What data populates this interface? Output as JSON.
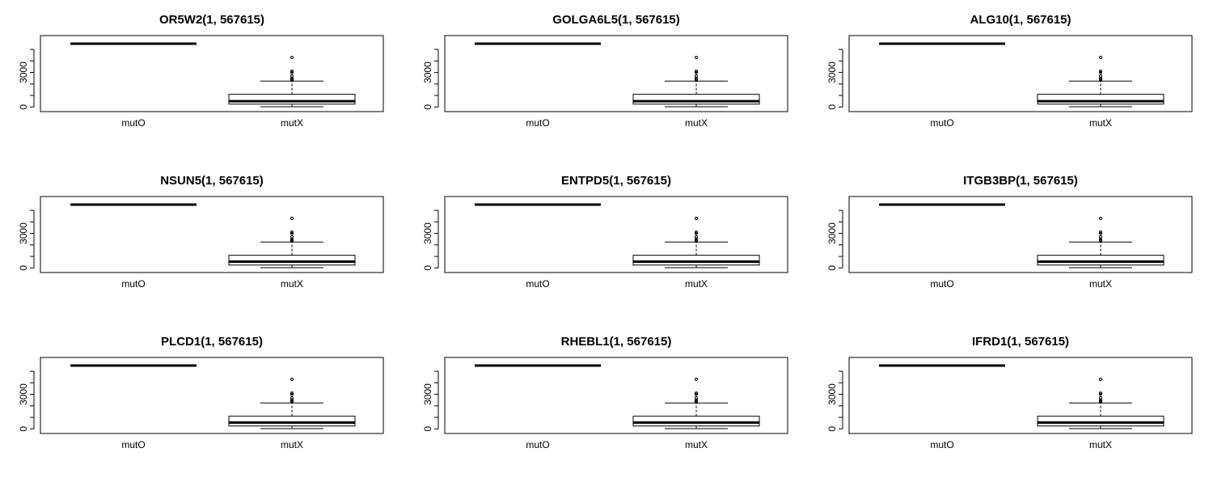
{
  "chart_data": [
    {
      "type": "box",
      "title": "OR5W2(1, 567615)",
      "categories": [
        "mutO",
        "mutX"
      ],
      "yticks": [
        "0",
        "3000"
      ],
      "ylim": [
        -400,
        6200
      ],
      "boxes": [
        {
          "name": "mutO",
          "min": 5500,
          "q1": 5500,
          "median": 5500,
          "q3": 5500,
          "max": 5500,
          "outliers": []
        },
        {
          "name": "mutX",
          "min": 20,
          "q1": 250,
          "median": 500,
          "q3": 1100,
          "max": 2250,
          "outliers": [
            2350,
            2400,
            2500,
            2700,
            3000,
            3100,
            4300
          ]
        }
      ]
    },
    {
      "type": "box",
      "title": "GOLGA6L5(1, 567615)",
      "categories": [
        "mutO",
        "mutX"
      ],
      "yticks": [
        "0",
        "3000"
      ],
      "ylim": [
        -400,
        6200
      ],
      "boxes": [
        {
          "name": "mutO",
          "min": 5500,
          "q1": 5500,
          "median": 5500,
          "q3": 5500,
          "max": 5500,
          "outliers": []
        },
        {
          "name": "mutX",
          "min": 20,
          "q1": 250,
          "median": 500,
          "q3": 1100,
          "max": 2250,
          "outliers": [
            2350,
            2400,
            2500,
            2700,
            3000,
            3100,
            4300
          ]
        }
      ]
    },
    {
      "type": "box",
      "title": "ALG10(1, 567615)",
      "categories": [
        "mutO",
        "mutX"
      ],
      "yticks": [
        "0",
        "3000"
      ],
      "ylim": [
        -400,
        6200
      ],
      "boxes": [
        {
          "name": "mutO",
          "min": 5500,
          "q1": 5500,
          "median": 5500,
          "q3": 5500,
          "max": 5500,
          "outliers": []
        },
        {
          "name": "mutX",
          "min": 20,
          "q1": 250,
          "median": 500,
          "q3": 1100,
          "max": 2250,
          "outliers": [
            2350,
            2400,
            2500,
            2700,
            3000,
            3100,
            4300
          ]
        }
      ]
    },
    {
      "type": "box",
      "title": "NSUN5(1, 567615)",
      "categories": [
        "mutO",
        "mutX"
      ],
      "yticks": [
        "0",
        "3000"
      ],
      "ylim": [
        -400,
        6200
      ],
      "boxes": [
        {
          "name": "mutO",
          "min": 5500,
          "q1": 5500,
          "median": 5500,
          "q3": 5500,
          "max": 5500,
          "outliers": []
        },
        {
          "name": "mutX",
          "min": 20,
          "q1": 250,
          "median": 550,
          "q3": 1100,
          "max": 2250,
          "outliers": [
            2350,
            2400,
            2500,
            2700,
            3000,
            3100,
            4300
          ]
        }
      ]
    },
    {
      "type": "box",
      "title": "ENTPD5(1, 567615)",
      "categories": [
        "mutO",
        "mutX"
      ],
      "yticks": [
        "0",
        "3000"
      ],
      "ylim": [
        -400,
        6200
      ],
      "boxes": [
        {
          "name": "mutO",
          "min": 5500,
          "q1": 5500,
          "median": 5500,
          "q3": 5500,
          "max": 5500,
          "outliers": []
        },
        {
          "name": "mutX",
          "min": 20,
          "q1": 250,
          "median": 550,
          "q3": 1100,
          "max": 2250,
          "outliers": [
            2350,
            2400,
            2500,
            2700,
            3000,
            3100,
            4300
          ]
        }
      ]
    },
    {
      "type": "box",
      "title": "ITGB3BP(1, 567615)",
      "categories": [
        "mutO",
        "mutX"
      ],
      "yticks": [
        "0",
        "3000"
      ],
      "ylim": [
        -400,
        6200
      ],
      "boxes": [
        {
          "name": "mutO",
          "min": 5500,
          "q1": 5500,
          "median": 5500,
          "q3": 5500,
          "max": 5500,
          "outliers": []
        },
        {
          "name": "mutX",
          "min": 20,
          "q1": 250,
          "median": 550,
          "q3": 1100,
          "max": 2250,
          "outliers": [
            2350,
            2400,
            2500,
            2700,
            3000,
            3100,
            4300
          ]
        }
      ]
    },
    {
      "type": "box",
      "title": "PLCD1(1, 567615)",
      "categories": [
        "mutO",
        "mutX"
      ],
      "yticks": [
        "0",
        "3000"
      ],
      "ylim": [
        -400,
        6200
      ],
      "boxes": [
        {
          "name": "mutO",
          "min": 5500,
          "q1": 5500,
          "median": 5500,
          "q3": 5500,
          "max": 5500,
          "outliers": []
        },
        {
          "name": "mutX",
          "min": 20,
          "q1": 250,
          "median": 550,
          "q3": 1100,
          "max": 2250,
          "outliers": [
            2350,
            2400,
            2500,
            2700,
            3000,
            3100,
            4300
          ]
        }
      ]
    },
    {
      "type": "box",
      "title": "RHEBL1(1, 567615)",
      "categories": [
        "mutO",
        "mutX"
      ],
      "yticks": [
        "0",
        "3000"
      ],
      "ylim": [
        -400,
        6200
      ],
      "boxes": [
        {
          "name": "mutO",
          "min": 5500,
          "q1": 5500,
          "median": 5500,
          "q3": 5500,
          "max": 5500,
          "outliers": []
        },
        {
          "name": "mutX",
          "min": 20,
          "q1": 250,
          "median": 550,
          "q3": 1100,
          "max": 2250,
          "outliers": [
            2350,
            2400,
            2500,
            2700,
            3000,
            3100,
            4300
          ]
        }
      ]
    },
    {
      "type": "box",
      "title": "IFRD1(1, 567615)",
      "categories": [
        "mutO",
        "mutX"
      ],
      "yticks": [
        "0",
        "3000"
      ],
      "ylim": [
        -400,
        6200
      ],
      "boxes": [
        {
          "name": "mutO",
          "min": 5500,
          "q1": 5500,
          "median": 5500,
          "q3": 5500,
          "max": 5500,
          "outliers": []
        },
        {
          "name": "mutX",
          "min": 20,
          "q1": 250,
          "median": 550,
          "q3": 1100,
          "max": 2250,
          "outliers": [
            2350,
            2400,
            2500,
            2700,
            3000,
            3100,
            4300
          ]
        }
      ]
    }
  ]
}
